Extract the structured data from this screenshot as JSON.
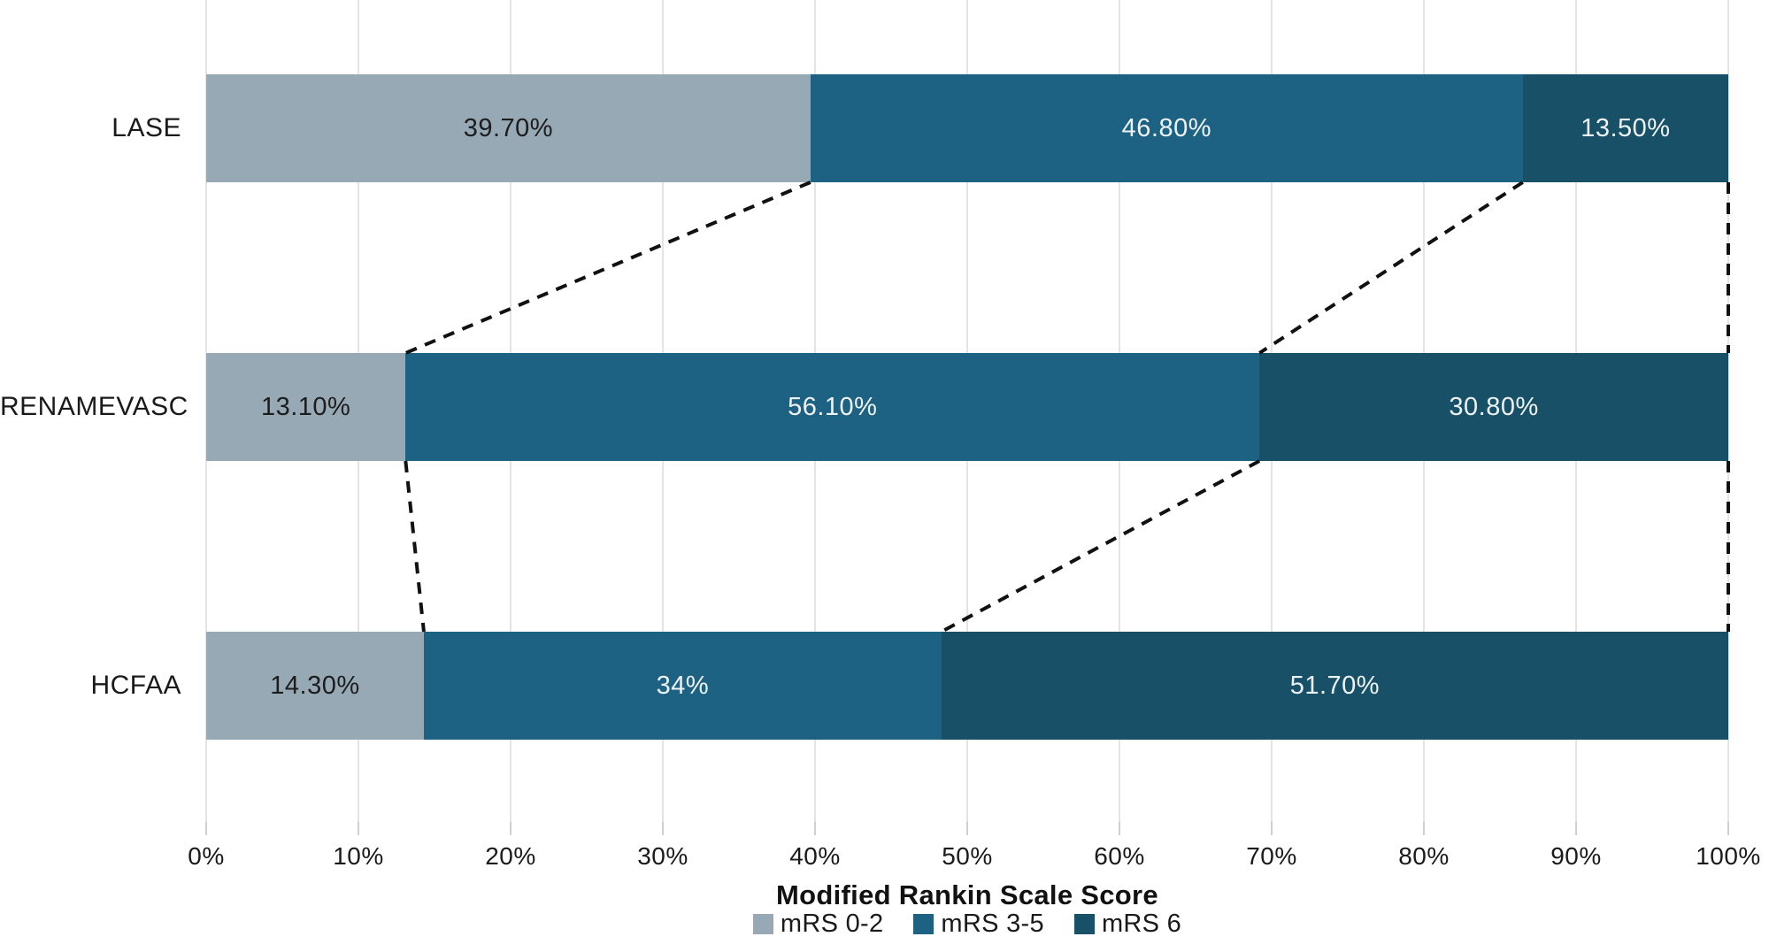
{
  "chart_data": {
    "type": "bar",
    "orientation": "horizontal-stacked",
    "title": "",
    "xlabel": "Modified Rankin Scale Score",
    "ylabel": "",
    "categories": [
      "LASE",
      "RENAMEVASC",
      "HCFAA"
    ],
    "series": [
      {
        "name": "mRS 0-2",
        "color": "#96a9b4",
        "label_color": "#1d1d1d",
        "values": [
          39.7,
          13.1,
          14.3
        ],
        "labels": [
          "39.70%",
          "13.10%",
          "14.30%"
        ]
      },
      {
        "name": "mRS 3-5",
        "color": "#1d6283",
        "label_color": "#edf2f5",
        "values": [
          46.8,
          56.1,
          34.0
        ],
        "labels": [
          "46.80%",
          "56.10%",
          "34%"
        ]
      },
      {
        "name": "mRS 6",
        "color": "#175067",
        "label_color": "#edf2f5",
        "values": [
          13.5,
          30.8,
          51.7
        ],
        "labels": [
          "13.50%",
          "30.80%",
          "51.70%"
        ]
      }
    ],
    "x_ticks": [
      "0%",
      "10%",
      "20%",
      "30%",
      "40%",
      "50%",
      "60%",
      "70%",
      "80%",
      "90%",
      "100%"
    ],
    "xlim": [
      0,
      100
    ],
    "grid": "vertical",
    "legend_position": "bottom",
    "connectors": {
      "style": "dashed",
      "color": "#111111",
      "description": "dashed lines linking cumulative segment boundaries between adjacent bars, including at 100%"
    }
  }
}
